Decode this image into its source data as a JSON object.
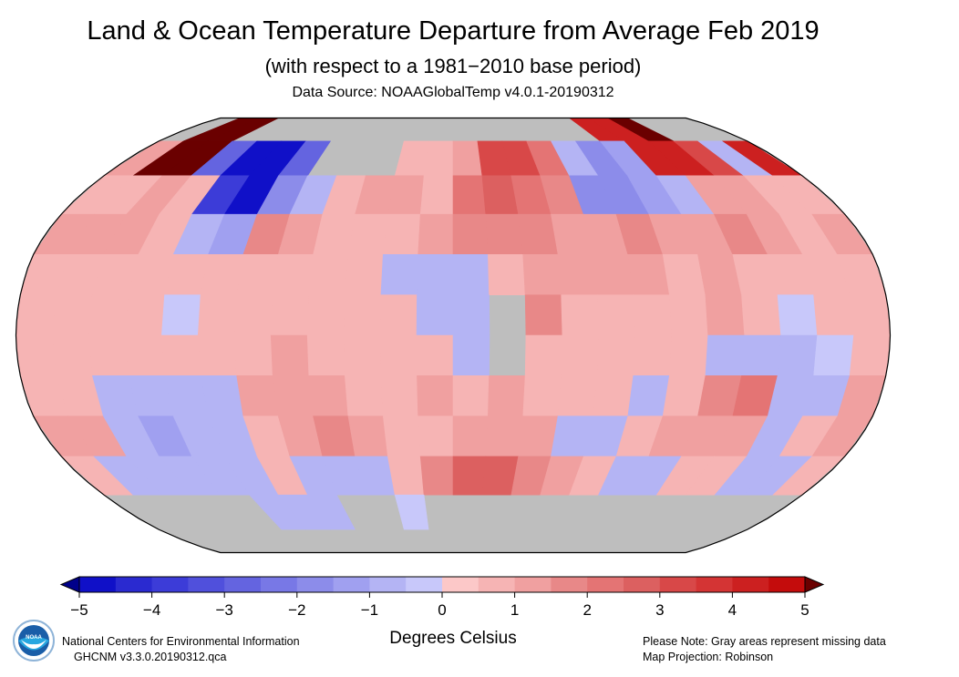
{
  "header": {
    "title": "Land & Ocean Temperature Departure from Average Feb 2019",
    "subtitle": "(with respect to a 1981−2010 base period)",
    "source": "Data Source: NOAAGlobalTemp v4.0.1-20190312"
  },
  "footer": {
    "logo_text": "NOAA",
    "org": "National Centers for Environmental Information",
    "dataset": "GHCNM v3.3.0.20190312.qca",
    "note": "Please Note: Gray areas represent missing data",
    "projection": "Map Projection: Robinson"
  },
  "chart_data": {
    "type": "heatmap",
    "projection": "Robinson",
    "missing_color": "#bebebe",
    "grid_resolution_deg": 15,
    "lat_bands": [
      "75..90",
      "60..75",
      "45..60",
      "30..45",
      "15..30",
      "0..15",
      "-15..0",
      "-30..-15",
      "-45..-30",
      "-60..-45",
      "-75..-60",
      "-90..-75"
    ],
    "lon_start": -180,
    "anomalies_c": [
      [
        null,
        5,
        5,
        null,
        null,
        null,
        null,
        null,
        null,
        null,
        null,
        null,
        null,
        null,
        null,
        null,
        null,
        null,
        4,
        4,
        5,
        null,
        null,
        null
      ],
      [
        1,
        5,
        5,
        -3,
        -5,
        -5,
        -3,
        null,
        null,
        null,
        0.7,
        0.7,
        1,
        3,
        3,
        2,
        -1,
        -2,
        -1.5,
        4,
        4,
        3,
        -1,
        4
      ],
      [
        0.7,
        0.7,
        1,
        0.7,
        -4,
        -5,
        -2,
        -0.8,
        0.7,
        1,
        1,
        0.7,
        2,
        2.5,
        2,
        1.5,
        -2,
        -2,
        -1.5,
        -1,
        1,
        1,
        0.7,
        0.7
      ],
      [
        1,
        1,
        1,
        0.7,
        -1,
        -1.5,
        1.5,
        1,
        0.7,
        0.7,
        0.7,
        1,
        1.5,
        1.5,
        1.5,
        1,
        1,
        1.5,
        1,
        1,
        1.5,
        1,
        0.7,
        1
      ],
      [
        0.7,
        0.7,
        0.7,
        0.7,
        0.7,
        0.7,
        0.7,
        0.6,
        0.6,
        0.6,
        -1,
        -1,
        -0.8,
        0.7,
        1,
        1,
        1,
        1,
        0.7,
        1,
        0.7,
        0.7,
        0.7,
        0.7
      ],
      [
        0.7,
        0.7,
        0.7,
        0.6,
        -0.5,
        0.7,
        0.7,
        0.7,
        0.7,
        0.6,
        0.7,
        -0.8,
        -0.8,
        null,
        1.5,
        0.7,
        0.7,
        0.6,
        0.7,
        1,
        0.6,
        -0.5,
        0.6,
        0.7
      ],
      [
        0.7,
        0.7,
        0.7,
        0.6,
        0.6,
        0.7,
        0.7,
        1,
        0.7,
        0.7,
        0.6,
        0.6,
        -0.8,
        null,
        0.7,
        0.6,
        0.6,
        0.6,
        0.7,
        -0.8,
        -1,
        -0.8,
        -0.5,
        0.6
      ],
      [
        0.7,
        0.7,
        -0.8,
        -0.8,
        -0.8,
        -1,
        1,
        1,
        1,
        0.7,
        0.7,
        1,
        0.7,
        1,
        0.7,
        0.7,
        0.6,
        -0.8,
        0.7,
        1.5,
        2,
        -0.8,
        -0.8,
        1
      ],
      [
        1,
        1,
        -1,
        -1.5,
        -1,
        -0.8,
        0.7,
        1,
        1.5,
        1,
        0.7,
        0.7,
        1,
        1,
        1,
        -1,
        -1,
        0.7,
        1,
        1,
        1,
        -0.8,
        0.6,
        1
      ],
      [
        0.7,
        -0.8,
        -1,
        -0.8,
        -0.8,
        -0.8,
        0.6,
        -0.8,
        -0.8,
        -0.8,
        0.6,
        1.5,
        2.5,
        2.5,
        1.5,
        1,
        0.7,
        -0.8,
        -0.8,
        0.7,
        0.6,
        -0.8,
        -0.8,
        0.7
      ],
      [
        null,
        null,
        null,
        null,
        null,
        -0.8,
        -0.8,
        -0.8,
        null,
        null,
        -0.5,
        null,
        null,
        null,
        null,
        null,
        null,
        null,
        null,
        null,
        null,
        null,
        null,
        null
      ],
      [
        null,
        null,
        null,
        null,
        null,
        null,
        null,
        null,
        null,
        null,
        null,
        null,
        null,
        null,
        null,
        null,
        null,
        null,
        null,
        null,
        null,
        null,
        null,
        null
      ]
    ],
    "colorbar": {
      "label": "Degrees Celsius",
      "min": -5,
      "max": 5,
      "step": 0.5,
      "tick_labels": [
        "−5",
        "−4",
        "−3",
        "−2",
        "−1",
        "0",
        "1",
        "2",
        "3",
        "4",
        "5"
      ],
      "colors": [
        "#1010c8",
        "#2a2ad0",
        "#3c3cd8",
        "#5050dc",
        "#6464e0",
        "#7878e6",
        "#8c8cea",
        "#a0a0f0",
        "#b4b4f4",
        "#c8c8fa",
        "#fcc8c8",
        "#f6b4b4",
        "#f0a0a0",
        "#e88888",
        "#e47474",
        "#dc6060",
        "#d84848",
        "#d43434",
        "#cc2020",
        "#c40c0c"
      ],
      "under_color": "#00008a",
      "over_color": "#6a0000"
    }
  }
}
